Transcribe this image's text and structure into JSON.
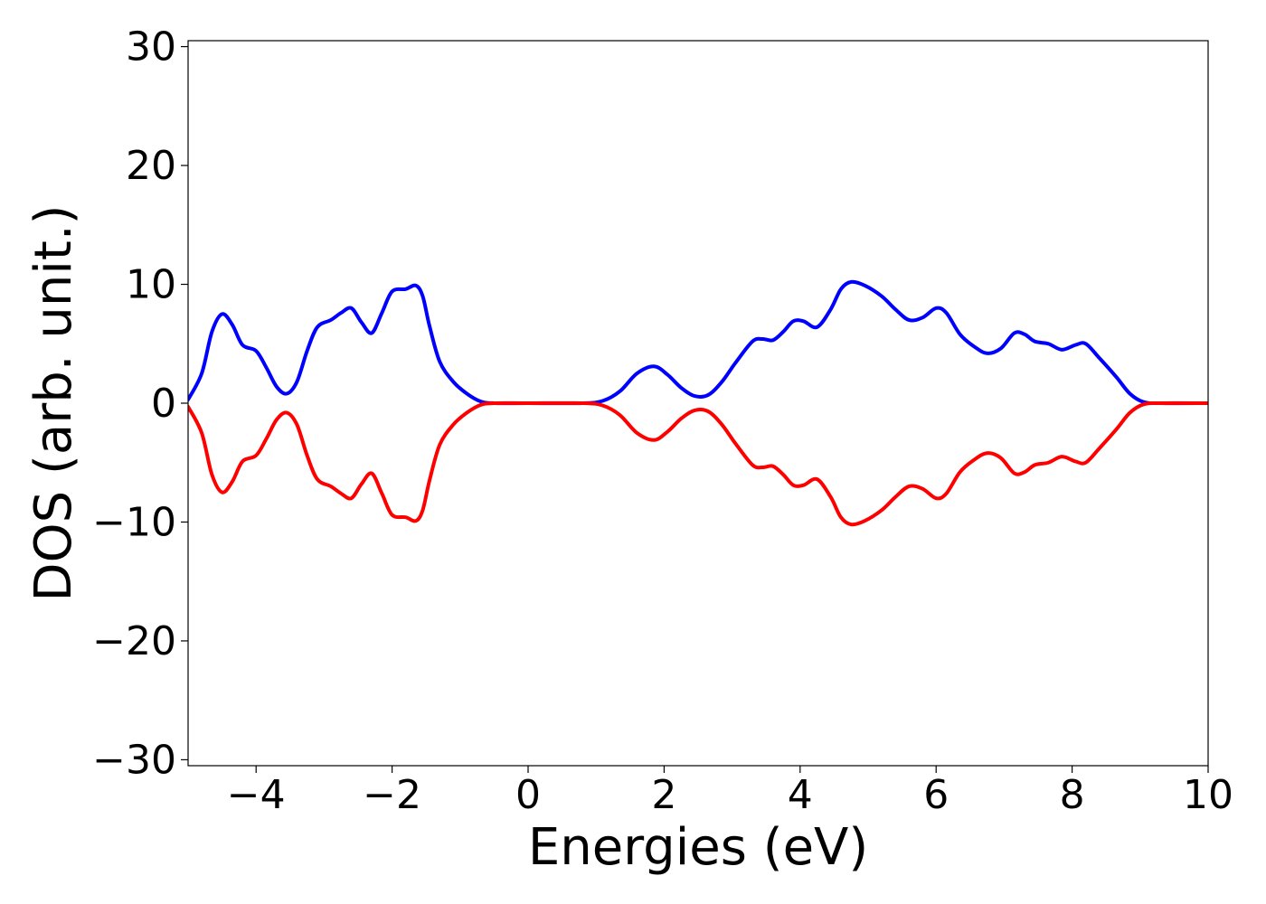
{
  "chart_data": {
    "type": "line",
    "title": "",
    "xlabel": "Energies (eV)",
    "ylabel": "DOS (arb. unit.)",
    "xlim": [
      -5,
      10
    ],
    "ylim": [
      -30.5,
      30.5
    ],
    "grid": false,
    "x_ticks": [
      {
        "value": -4,
        "label": "−4"
      },
      {
        "value": -2,
        "label": "−2"
      },
      {
        "value": 0,
        "label": "0"
      },
      {
        "value": 2,
        "label": "2"
      },
      {
        "value": 4,
        "label": "4"
      },
      {
        "value": 6,
        "label": "6"
      },
      {
        "value": 8,
        "label": "8"
      },
      {
        "value": 10,
        "label": "10"
      }
    ],
    "y_ticks": [
      {
        "value": 30,
        "label": "30"
      },
      {
        "value": 20,
        "label": "20"
      },
      {
        "value": 10,
        "label": "10"
      },
      {
        "value": 0,
        "label": "0"
      },
      {
        "value": -10,
        "label": "−10"
      },
      {
        "value": -20,
        "label": "−20"
      },
      {
        "value": -30,
        "label": "−30"
      }
    ],
    "series": [
      {
        "color": "#0000ff",
        "points": [
          [
            -5.0,
            0.3
          ],
          [
            -4.8,
            2.5
          ],
          [
            -4.65,
            6.0
          ],
          [
            -4.5,
            7.5
          ],
          [
            -4.35,
            6.6
          ],
          [
            -4.2,
            4.9
          ],
          [
            -4.0,
            4.4
          ],
          [
            -3.85,
            3.0
          ],
          [
            -3.7,
            1.4
          ],
          [
            -3.55,
            0.8
          ],
          [
            -3.4,
            1.8
          ],
          [
            -3.25,
            4.4
          ],
          [
            -3.1,
            6.4
          ],
          [
            -2.9,
            7.0
          ],
          [
            -2.75,
            7.6
          ],
          [
            -2.6,
            8.0
          ],
          [
            -2.45,
            6.8
          ],
          [
            -2.3,
            5.9
          ],
          [
            -2.15,
            7.6
          ],
          [
            -2.0,
            9.4
          ],
          [
            -1.8,
            9.6
          ],
          [
            -1.65,
            9.9
          ],
          [
            -1.55,
            9.0
          ],
          [
            -1.45,
            6.5
          ],
          [
            -1.3,
            3.5
          ],
          [
            -1.1,
            1.8
          ],
          [
            -0.9,
            0.8
          ],
          [
            -0.7,
            0.15
          ],
          [
            -0.5,
            0.0
          ],
          [
            0.0,
            0.0
          ],
          [
            0.8,
            0.0
          ],
          [
            1.1,
            0.2
          ],
          [
            1.35,
            1.0
          ],
          [
            1.6,
            2.5
          ],
          [
            1.85,
            3.1
          ],
          [
            2.05,
            2.4
          ],
          [
            2.25,
            1.3
          ],
          [
            2.45,
            0.6
          ],
          [
            2.65,
            0.7
          ],
          [
            2.85,
            1.8
          ],
          [
            3.05,
            3.4
          ],
          [
            3.3,
            5.2
          ],
          [
            3.45,
            5.4
          ],
          [
            3.6,
            5.3
          ],
          [
            3.75,
            6.0
          ],
          [
            3.9,
            6.9
          ],
          [
            4.05,
            6.9
          ],
          [
            4.25,
            6.4
          ],
          [
            4.45,
            7.9
          ],
          [
            4.6,
            9.6
          ],
          [
            4.75,
            10.2
          ],
          [
            4.95,
            9.9
          ],
          [
            5.2,
            9.0
          ],
          [
            5.4,
            7.9
          ],
          [
            5.6,
            7.0
          ],
          [
            5.8,
            7.2
          ],
          [
            6.0,
            8.0
          ],
          [
            6.15,
            7.6
          ],
          [
            6.35,
            5.8
          ],
          [
            6.55,
            4.8
          ],
          [
            6.75,
            4.2
          ],
          [
            6.95,
            4.6
          ],
          [
            7.15,
            5.9
          ],
          [
            7.3,
            5.8
          ],
          [
            7.45,
            5.2
          ],
          [
            7.65,
            5.0
          ],
          [
            7.85,
            4.5
          ],
          [
            8.05,
            4.9
          ],
          [
            8.2,
            5.0
          ],
          [
            8.4,
            3.8
          ],
          [
            8.65,
            2.2
          ],
          [
            8.85,
            0.8
          ],
          [
            9.05,
            0.1
          ],
          [
            9.3,
            0.0
          ],
          [
            10.0,
            0.0
          ]
        ]
      },
      {
        "color": "#ff0000",
        "points": [
          [
            -5.0,
            -0.3
          ],
          [
            -4.8,
            -2.5
          ],
          [
            -4.65,
            -6.0
          ],
          [
            -4.5,
            -7.5
          ],
          [
            -4.35,
            -6.6
          ],
          [
            -4.2,
            -4.9
          ],
          [
            -4.0,
            -4.4
          ],
          [
            -3.85,
            -3.0
          ],
          [
            -3.7,
            -1.4
          ],
          [
            -3.55,
            -0.8
          ],
          [
            -3.4,
            -1.8
          ],
          [
            -3.25,
            -4.4
          ],
          [
            -3.1,
            -6.4
          ],
          [
            -2.9,
            -7.0
          ],
          [
            -2.75,
            -7.6
          ],
          [
            -2.6,
            -8.0
          ],
          [
            -2.45,
            -6.8
          ],
          [
            -2.3,
            -5.9
          ],
          [
            -2.15,
            -7.6
          ],
          [
            -2.0,
            -9.4
          ],
          [
            -1.8,
            -9.6
          ],
          [
            -1.65,
            -9.9
          ],
          [
            -1.55,
            -9.0
          ],
          [
            -1.45,
            -6.5
          ],
          [
            -1.3,
            -3.5
          ],
          [
            -1.1,
            -1.8
          ],
          [
            -0.9,
            -0.8
          ],
          [
            -0.7,
            -0.15
          ],
          [
            -0.5,
            0.0
          ],
          [
            0.0,
            0.0
          ],
          [
            0.8,
            0.0
          ],
          [
            1.1,
            -0.2
          ],
          [
            1.35,
            -1.0
          ],
          [
            1.6,
            -2.5
          ],
          [
            1.85,
            -3.1
          ],
          [
            2.05,
            -2.4
          ],
          [
            2.25,
            -1.3
          ],
          [
            2.45,
            -0.6
          ],
          [
            2.65,
            -0.7
          ],
          [
            2.85,
            -1.8
          ],
          [
            3.05,
            -3.4
          ],
          [
            3.3,
            -5.2
          ],
          [
            3.45,
            -5.4
          ],
          [
            3.6,
            -5.3
          ],
          [
            3.75,
            -6.0
          ],
          [
            3.9,
            -6.9
          ],
          [
            4.05,
            -6.9
          ],
          [
            4.25,
            -6.4
          ],
          [
            4.45,
            -7.9
          ],
          [
            4.6,
            -9.6
          ],
          [
            4.75,
            -10.2
          ],
          [
            4.95,
            -9.9
          ],
          [
            5.2,
            -9.0
          ],
          [
            5.4,
            -7.9
          ],
          [
            5.6,
            -7.0
          ],
          [
            5.8,
            -7.2
          ],
          [
            6.0,
            -8.0
          ],
          [
            6.15,
            -7.6
          ],
          [
            6.35,
            -5.8
          ],
          [
            6.55,
            -4.8
          ],
          [
            6.75,
            -4.2
          ],
          [
            6.95,
            -4.6
          ],
          [
            7.15,
            -5.9
          ],
          [
            7.3,
            -5.8
          ],
          [
            7.45,
            -5.2
          ],
          [
            7.65,
            -5.0
          ],
          [
            7.85,
            -4.5
          ],
          [
            8.05,
            -4.9
          ],
          [
            8.2,
            -5.0
          ],
          [
            8.4,
            -3.8
          ],
          [
            8.65,
            -2.2
          ],
          [
            8.85,
            -0.8
          ],
          [
            9.05,
            -0.1
          ],
          [
            9.3,
            0.0
          ],
          [
            10.0,
            0.0
          ]
        ]
      }
    ]
  }
}
